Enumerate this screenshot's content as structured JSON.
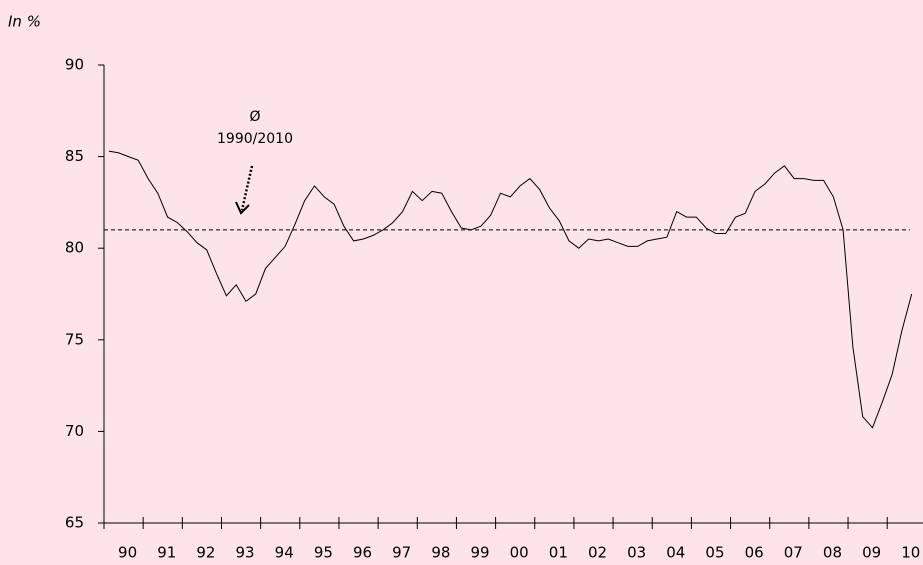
{
  "chart_data": {
    "type": "line",
    "y_label": "In %",
    "categories": [
      "90",
      null,
      null,
      null,
      "91",
      null,
      null,
      null,
      "92",
      null,
      null,
      null,
      "93",
      null,
      null,
      null,
      "94",
      null,
      null,
      null,
      "95",
      null,
      null,
      null,
      "96",
      null,
      null,
      null,
      "97",
      null,
      null,
      null,
      "98",
      null,
      null,
      null,
      "99",
      null,
      null,
      null,
      "00",
      null,
      null,
      null,
      "01",
      null,
      null,
      null,
      "02",
      null,
      null,
      null,
      "03",
      null,
      null,
      null,
      "04",
      null,
      null,
      null,
      "05",
      null,
      null,
      null,
      "06",
      null,
      null,
      null,
      "07",
      null,
      null,
      null,
      "08",
      null,
      null,
      null,
      "09",
      null,
      null,
      null,
      "10",
      null,
      null
    ],
    "values": [
      85.3,
      85.2,
      85.0,
      84.8,
      83.8,
      83.0,
      81.7,
      81.4,
      80.9,
      80.3,
      79.9,
      78.6,
      77.4,
      78.0,
      77.1,
      77.5,
      78.9,
      79.5,
      80.1,
      81.3,
      82.6,
      83.4,
      82.8,
      82.4,
      81.2,
      80.4,
      80.5,
      80.7,
      81.0,
      81.4,
      82.0,
      83.1,
      82.6,
      83.1,
      83.0,
      82.0,
      81.1,
      81.0,
      81.2,
      81.8,
      83.0,
      82.8,
      83.4,
      83.8,
      83.2,
      82.2,
      81.5,
      80.4,
      80.0,
      80.5,
      80.4,
      80.5,
      80.3,
      80.1,
      80.1,
      80.4,
      80.5,
      80.6,
      82.0,
      81.7,
      81.7,
      81.1,
      80.8,
      80.8,
      81.7,
      81.9,
      83.1,
      83.5,
      84.1,
      84.5,
      83.8,
      83.8,
      83.7,
      83.7,
      82.8,
      81.0,
      74.6,
      70.8,
      70.2,
      71.6,
      73.1,
      75.5,
      77.5
    ],
    "color": "#000000",
    "ylim": [
      65,
      90
    ],
    "yticks": [
      65,
      70,
      75,
      80,
      85,
      90
    ],
    "average": {
      "value": 81,
      "label": [
        "Ø",
        "1990/2010"
      ]
    }
  }
}
